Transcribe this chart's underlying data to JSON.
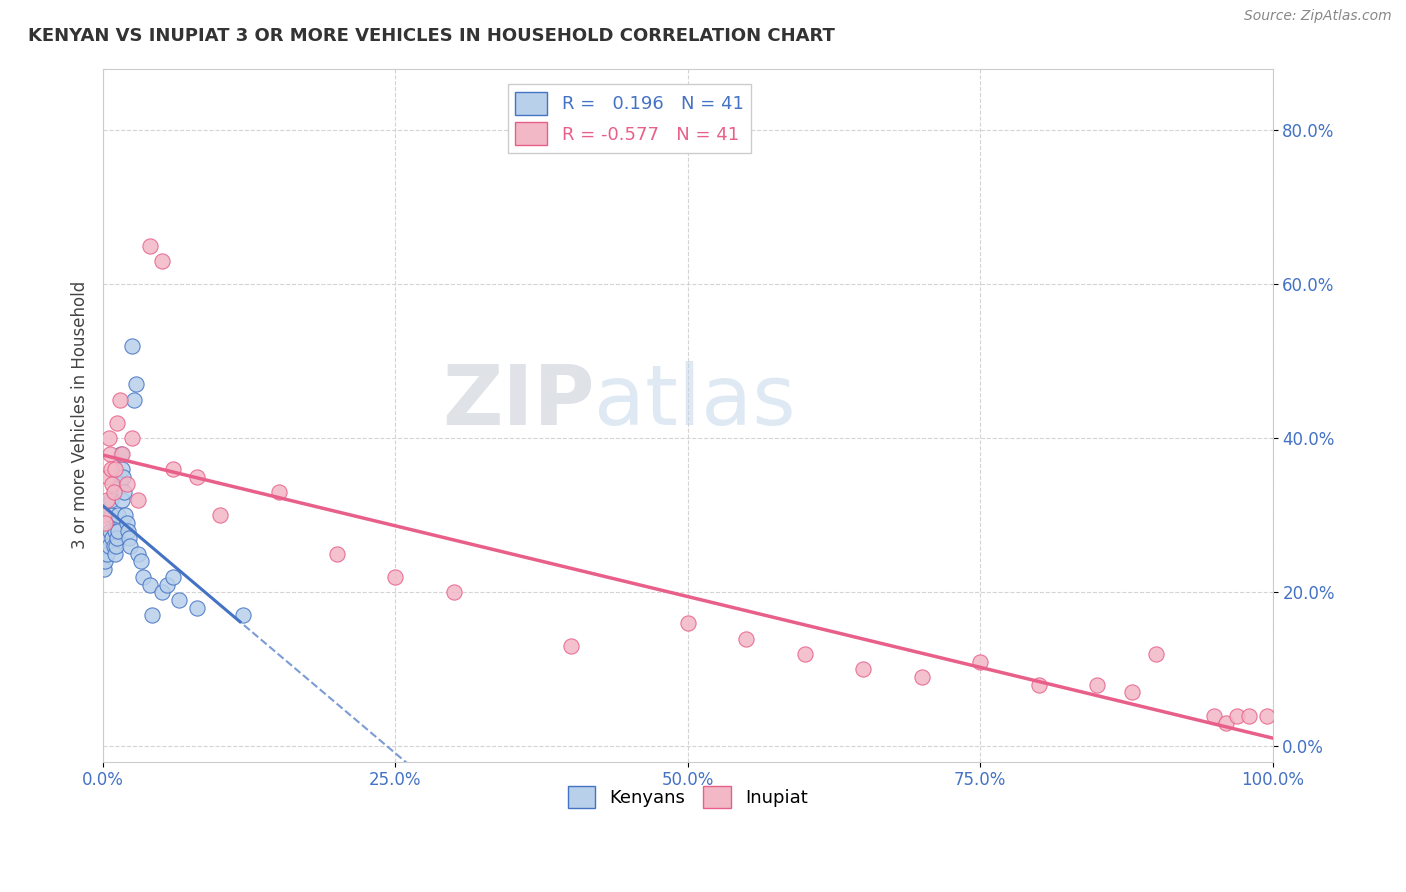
{
  "title": "KENYAN VS INUPIAT 3 OR MORE VEHICLES IN HOUSEHOLD CORRELATION CHART",
  "source_text": "Source: ZipAtlas.com",
  "ylabel": "3 or more Vehicles in Household",
  "xlim": [
    0.0,
    1.0
  ],
  "ylim": [
    -0.02,
    0.88
  ],
  "xticks": [
    0.0,
    0.25,
    0.5,
    0.75,
    1.0
  ],
  "yticks": [
    0.0,
    0.2,
    0.4,
    0.6,
    0.8
  ],
  "xtick_labels": [
    "0.0%",
    "25.0%",
    "50.0%",
    "75.0%",
    "100.0%"
  ],
  "ytick_labels": [
    "0.0%",
    "20.0%",
    "40.0%",
    "60.0%",
    "80.0%"
  ],
  "legend_labels": [
    "Kenyans",
    "Inupiat"
  ],
  "kenyan_color": "#b8d0ea",
  "inupiat_color": "#f2b8c6",
  "kenyan_line_color": "#4472c4",
  "inupiat_line_color": "#e8608a",
  "watermark_zip": "ZIP",
  "watermark_atlas": "atlas",
  "R_kenyan": 0.196,
  "N_kenyan": 41,
  "R_inupiat": -0.577,
  "N_inupiat": 41,
  "kenyan_x": [
    0.001,
    0.002,
    0.003,
    0.004,
    0.005,
    0.006,
    0.007,
    0.007,
    0.008,
    0.009,
    0.01,
    0.01,
    0.011,
    0.012,
    0.013,
    0.013,
    0.014,
    0.015,
    0.016,
    0.016,
    0.017,
    0.018,
    0.019,
    0.02,
    0.021,
    0.022,
    0.023,
    0.025,
    0.026,
    0.028,
    0.03,
    0.032,
    0.034,
    0.04,
    0.042,
    0.05,
    0.055,
    0.06,
    0.065,
    0.08,
    0.12
  ],
  "kenyan_y": [
    0.23,
    0.24,
    0.25,
    0.27,
    0.26,
    0.28,
    0.3,
    0.32,
    0.27,
    0.26,
    0.25,
    0.28,
    0.26,
    0.27,
    0.28,
    0.3,
    0.34,
    0.38,
    0.32,
    0.36,
    0.35,
    0.33,
    0.3,
    0.29,
    0.28,
    0.27,
    0.26,
    0.52,
    0.45,
    0.47,
    0.25,
    0.24,
    0.22,
    0.21,
    0.17,
    0.2,
    0.21,
    0.22,
    0.19,
    0.18,
    0.17
  ],
  "inupiat_x": [
    0.001,
    0.002,
    0.003,
    0.004,
    0.005,
    0.006,
    0.007,
    0.008,
    0.009,
    0.01,
    0.012,
    0.014,
    0.016,
    0.02,
    0.025,
    0.03,
    0.04,
    0.05,
    0.06,
    0.08,
    0.1,
    0.15,
    0.2,
    0.25,
    0.3,
    0.4,
    0.5,
    0.55,
    0.6,
    0.65,
    0.7,
    0.75,
    0.8,
    0.85,
    0.88,
    0.9,
    0.95,
    0.96,
    0.97,
    0.98,
    0.995
  ],
  "inupiat_y": [
    0.3,
    0.29,
    0.32,
    0.35,
    0.4,
    0.38,
    0.36,
    0.34,
    0.33,
    0.36,
    0.42,
    0.45,
    0.38,
    0.34,
    0.4,
    0.32,
    0.65,
    0.63,
    0.36,
    0.35,
    0.3,
    0.33,
    0.25,
    0.22,
    0.2,
    0.13,
    0.16,
    0.14,
    0.12,
    0.1,
    0.09,
    0.11,
    0.08,
    0.08,
    0.07,
    0.12,
    0.04,
    0.03,
    0.04,
    0.04,
    0.04
  ],
  "background_color": "#ffffff",
  "grid_color": "#d0d0d0"
}
